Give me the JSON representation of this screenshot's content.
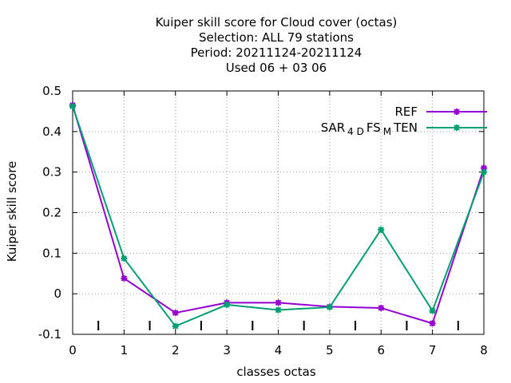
{
  "chart_data": {
    "type": "line",
    "title_lines": [
      "Kuiper skill score  for Cloud cover (octas)",
      "Selection: ALL     79 stations",
      "Period: 20211124-20211124",
      "Used  06 + 03 06"
    ],
    "xlabel": "classes octas",
    "ylabel": "Kuiper skill score",
    "x": [
      0,
      1,
      2,
      3,
      4,
      5,
      6,
      7,
      8
    ],
    "xlim": [
      0,
      8
    ],
    "ylim": [
      -0.1,
      0.5
    ],
    "x_ticks": [
      "0",
      "1",
      "2",
      "3",
      "4",
      "5",
      "6",
      "7",
      "8"
    ],
    "y_ticks": [
      "-0.1",
      "0",
      "0.1",
      "0.2",
      "0.3",
      "0.4",
      "0.5"
    ],
    "grid": true,
    "legend_position": "top-right",
    "class_marks": [
      0.5,
      1.5,
      2.5,
      3.5,
      4.5,
      5.5,
      6.5,
      7.5
    ],
    "series": [
      {
        "name": "REF",
        "color": "#9400d3",
        "values": [
          0.465,
          0.038,
          -0.047,
          -0.022,
          -0.022,
          -0.032,
          -0.035,
          -0.073,
          0.31
        ]
      },
      {
        "name": "SAR_4DFS_MTEN",
        "legend_parts": [
          {
            "text": "SAR",
            "sub": false
          },
          {
            "text": "4 D",
            "sub": true
          },
          {
            "text": "FS",
            "sub": false
          },
          {
            "text": "M",
            "sub": true
          },
          {
            "text": "TEN",
            "sub": false
          }
        ],
        "color": "#009e73",
        "values": [
          0.462,
          0.087,
          -0.08,
          -0.027,
          -0.04,
          -0.033,
          0.158,
          -0.042,
          0.3
        ]
      }
    ]
  }
}
